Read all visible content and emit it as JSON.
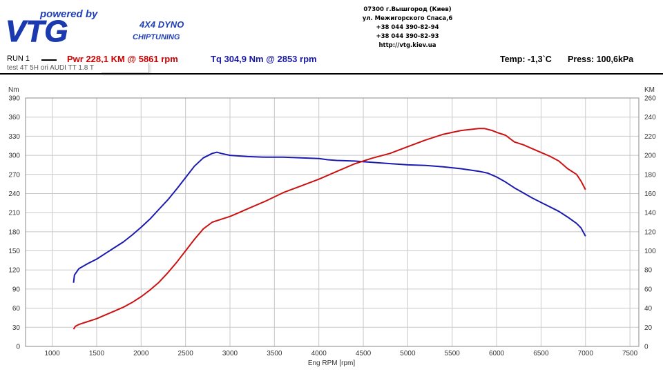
{
  "header": {
    "logo_tagline": "powered by",
    "logo_text": "VTG",
    "logo_line1": "4X4 DYNO",
    "logo_line2": "CHIPTUNING",
    "contact_lines": [
      "07300 г.Вышгород (Киев)",
      "ул. Межигорского Спаса,6",
      "+38 044 390-82-94",
      "+38 044 390-82-93",
      "http://vtg.kiev.ua"
    ]
  },
  "run": {
    "label": "RUN 1",
    "pwr": "Pwr  228,1 KM @ 5861 rpm",
    "tq": "Tq 304,9 Nm @ 2853 rpm",
    "test": "test  4T 5H  ori AUDI TT 1.8 T",
    "temp": "Temp: -1,3`C",
    "press": "Press: 100,6kPa"
  },
  "colors": {
    "power": "#cc1111",
    "torque": "#1a1ab0",
    "grid": "#c8c8c8"
  },
  "chart_data": {
    "type": "line",
    "xlabel": "Eng RPM [rpm]",
    "ylabel_left": "Nm",
    "ylabel_right": "KM",
    "xlim": [
      700,
      7600
    ],
    "ylim_left": [
      0,
      390
    ],
    "ylim_right": [
      0,
      260
    ],
    "x_ticks": [
      1000,
      1500,
      2000,
      2500,
      3000,
      3500,
      4000,
      4500,
      5000,
      5500,
      6000,
      6500,
      7000,
      7500
    ],
    "y_ticks_left": [
      0,
      30,
      60,
      90,
      120,
      150,
      180,
      210,
      240,
      270,
      300,
      330,
      360,
      390
    ],
    "y_ticks_right": [
      0,
      20,
      40,
      60,
      80,
      100,
      120,
      140,
      160,
      180,
      200,
      220,
      240,
      260
    ],
    "grid": true,
    "series": [
      {
        "axis": "left",
        "color": "#1a1ab0",
        "x": [
          1240,
          1250,
          1300,
          1400,
          1500,
          1600,
          1700,
          1800,
          1900,
          2000,
          2100,
          2200,
          2300,
          2400,
          2500,
          2600,
          2700,
          2800,
          2853,
          2900,
          3000,
          3100,
          3200,
          3400,
          3600,
          3800,
          4000,
          4100,
          4200,
          4400,
          4600,
          4800,
          5000,
          5200,
          5400,
          5600,
          5800,
          5900,
          6000,
          6100,
          6200,
          6300,
          6400,
          6500,
          6600,
          6700,
          6800,
          6900,
          6950,
          7000
        ],
        "y": [
          100,
          112,
          122,
          130,
          137,
          146,
          155,
          164,
          175,
          187,
          200,
          215,
          230,
          247,
          265,
          283,
          296,
          303,
          304.9,
          303,
          300,
          299,
          298,
          297,
          297,
          296,
          295,
          293,
          292,
          291,
          289,
          287,
          285,
          284,
          282,
          279,
          275,
          272,
          266,
          258,
          249,
          241,
          233,
          226,
          219,
          212,
          203,
          193,
          186,
          173
        ]
      },
      {
        "axis": "right",
        "color": "#cc1111",
        "x": [
          1240,
          1260,
          1300,
          1400,
          1500,
          1600,
          1700,
          1800,
          1900,
          2000,
          2100,
          2200,
          2300,
          2400,
          2500,
          2600,
          2700,
          2800,
          2900,
          3000,
          3100,
          3200,
          3400,
          3600,
          3800,
          4000,
          4200,
          4400,
          4600,
          4800,
          5000,
          5200,
          5400,
          5600,
          5800,
          5861,
          5950,
          6000,
          6100,
          6200,
          6300,
          6400,
          6500,
          6600,
          6700,
          6800,
          6900,
          6950,
          7000
        ],
        "y": [
          18,
          21,
          23,
          26,
          29,
          33,
          37,
          41,
          46,
          52,
          59,
          67,
          77,
          88,
          100,
          112,
          123,
          130,
          133,
          136,
          140,
          144,
          152,
          161,
          168,
          175,
          183,
          191,
          197,
          202,
          209,
          216,
          222,
          226,
          228,
          228.1,
          226,
          224,
          221,
          214,
          211,
          207,
          203,
          199,
          194,
          186,
          180,
          173,
          164
        ]
      }
    ]
  }
}
